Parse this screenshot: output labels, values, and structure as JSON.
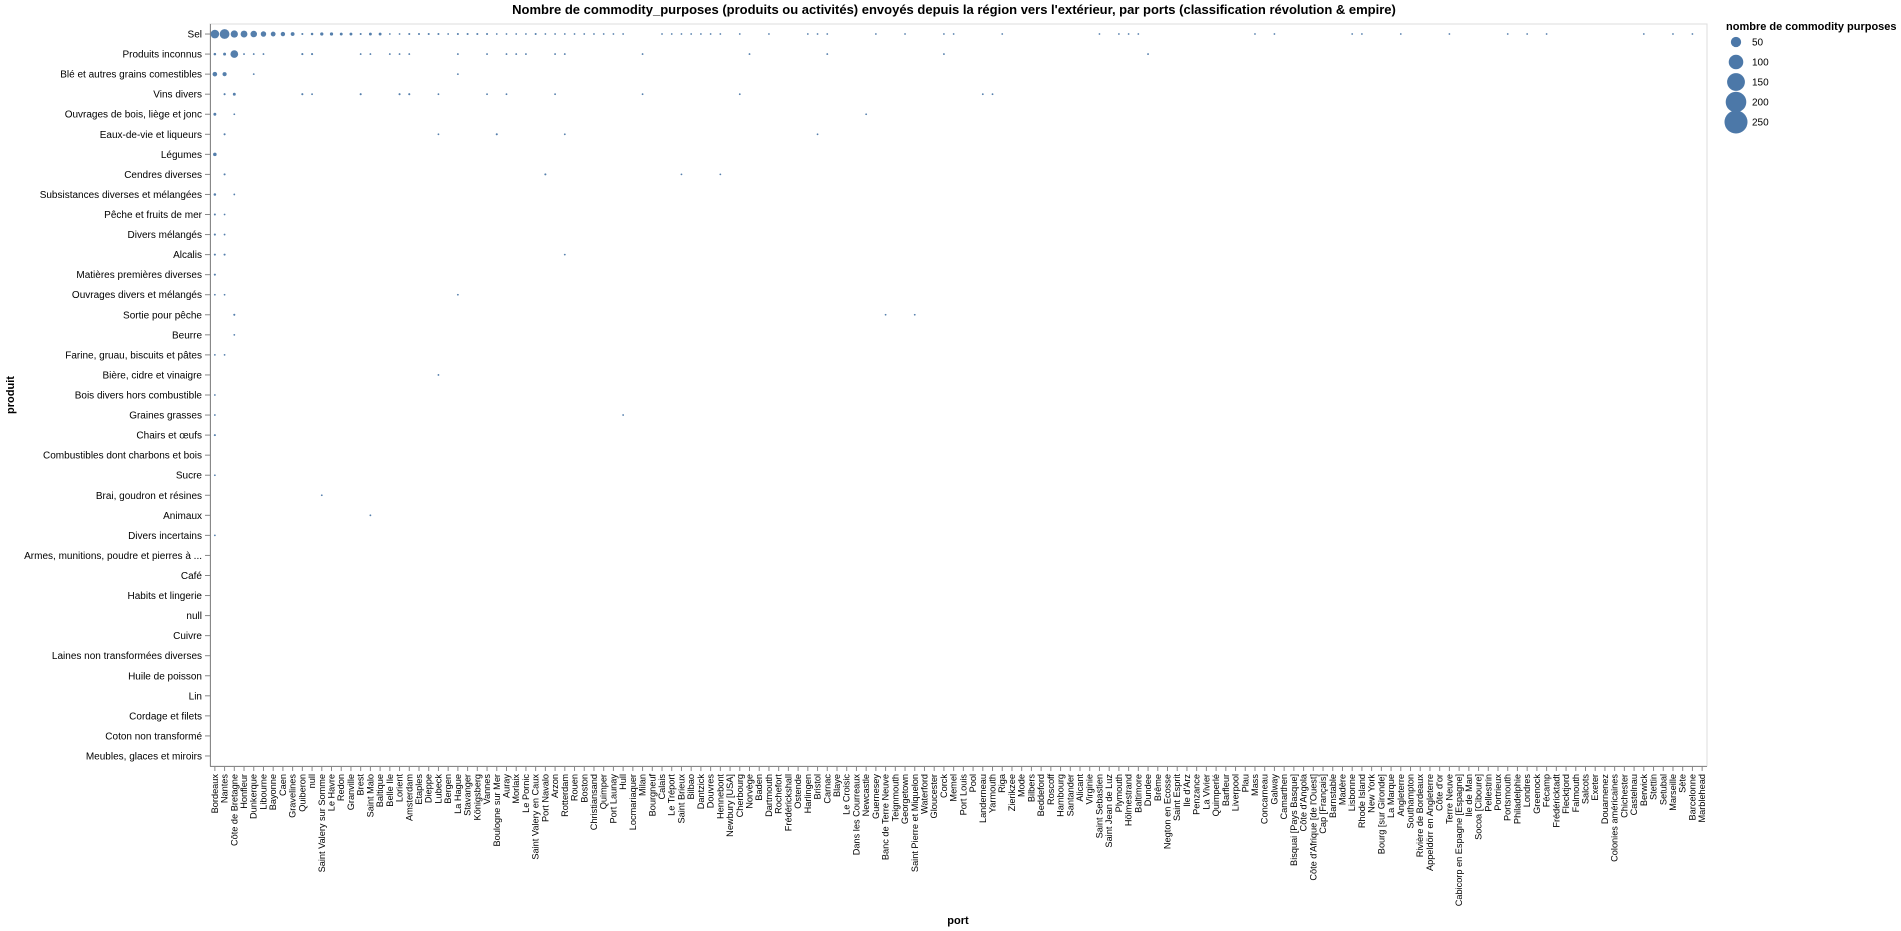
{
  "chart_data": {
    "type": "scatter",
    "title": "Nombre de commodity_purposes (produits ou activités) envoyés depuis la région vers l'extérieur, par ports (classification révolution & empire)",
    "xlabel": "port",
    "ylabel": "produit",
    "size_legend": {
      "title": "nombre de commodity purposes",
      "values": [
        50,
        100,
        150,
        200,
        250
      ]
    },
    "color": "#4c78a8",
    "y_categories": [
      "Sel",
      "Produits inconnus",
      "Blé et autres grains comestibles",
      "Vins divers",
      "Ouvrages de bois, liège et jonc",
      "Eaux-de-vie et liqueurs",
      "Légumes",
      "Cendres diverses",
      "Subsistances diverses et mélangées",
      "Pêche et fruits de mer",
      "Divers mélangés",
      "Alcalis",
      "Matières premières diverses",
      "Ouvrages divers et mélangés",
      "Sortie pour pêche",
      "Beurre",
      "Farine, gruau, biscuits et pâtes",
      "Bière, cidre et vinaigre",
      "Bois divers hors combustible",
      "Graines grasses",
      "Chairs et œufs",
      "Combustibles dont charbons et bois",
      "Sucre",
      "Brai, goudron et résines",
      "Animaux",
      "Divers incertains",
      "Armes, munitions, poudre et pierres à ...",
      "Café",
      "Habits et lingerie",
      "null",
      "Cuivre",
      "Laines non transformées diverses",
      "Huile de poisson",
      "Lin",
      "Cordage et filets",
      "Coton non transformé",
      "Meubles, glaces et miroirs"
    ],
    "x_categories": [
      "Bordeaux",
      "Nantes",
      "Côte de Bretagne",
      "Honfleur",
      "Dunkerque",
      "Libourne",
      "Bayonne",
      "Caen",
      "Gravelines",
      "Quiberon",
      "null",
      "Saint Valery sur Somme",
      "Le Havre",
      "Redon",
      "Granville",
      "Brest",
      "Saint Malo",
      "Baltique",
      "Belle Ile",
      "Lorient",
      "Amsterdam",
      "Etaples",
      "Dieppe",
      "Lubeck",
      "Bergen",
      "La Hague",
      "Stavanger",
      "Königsberg",
      "Vannes",
      "Boulogne sur Mer",
      "Auray",
      "Morlaix",
      "Le Pornic",
      "Saint Valery en Caux",
      "Port Navalo",
      "Arzon",
      "Rotterdam",
      "Rouen",
      "Boston",
      "Christiansand",
      "Quimper",
      "Port Launay",
      "Hull",
      "Locmariaquer",
      "Milan",
      "Bourgneuf",
      "Calais",
      "Le Tréport",
      "Saint Brieux",
      "Bilbao",
      "Dantzick",
      "Douvres",
      "Hennebont",
      "Newbury [USA]",
      "Cherbourg",
      "Norvège",
      "Baden",
      "Dartmouth",
      "Rochefort",
      "Frédérickshall",
      "Ostende",
      "Harlingen",
      "Bristol",
      "Carnac",
      "Blaye",
      "Le Croisic",
      "Dans les Courreaux",
      "Newcastle",
      "Guernesey",
      "Banc de Terre Neuve",
      "Teignmouth",
      "Georgetown",
      "Saint Pierre et Miquelon",
      "Waterford",
      "Gloucester",
      "Corck",
      "Memel",
      "Port Louis",
      "Pool",
      "Landerneau",
      "Yarmouth",
      "Riga",
      "Zierikzee",
      "Mode",
      "Bilbers",
      "Beddeford",
      "Roscoff",
      "Hambourg",
      "Santander",
      "Alicant",
      "Virginie",
      "Saint Sebastien",
      "Saint Jean de Luz",
      "Plymouth",
      "Hölmestrand",
      "Baltimore",
      "Dundee",
      "Brême",
      "Negton en Ecosse",
      "Saint Esprit",
      "Ile d'Arz",
      "Penzance",
      "La Vivier",
      "Quimperlé",
      "Barfleur",
      "Liverpool",
      "Plau",
      "Mass",
      "Concarneau",
      "Galway",
      "Camarthen",
      "Bisquai [Pays Basque]",
      "Côte d'Angola",
      "Côte d'Afrique [de l'Ouest]",
      "Cap [Français]",
      "Barnstable",
      "Madère",
      "Lisbonne",
      "Rhode Island",
      "New York",
      "Bourg [sur Gironde]",
      "La Marque",
      "Angleterre",
      "Southampton",
      "Rivière de Bordeaux",
      "Appeldörr en Angleterre",
      "Côte d'or",
      "Terre Neuve",
      "Cabicorp en Espagne [Espagne]",
      "Ile de Man",
      "Socoa [Ciboure]",
      "Pellestrin",
      "Portrieux",
      "Portsmouth",
      "Philadelphie",
      "Londres",
      "Greenock",
      "Fécamp",
      "Frédéricktadt",
      "Flecktjord",
      "Falmouth",
      "Salcots",
      "Exeter",
      "Douarnenez",
      "Colonies américaines",
      "Chichester",
      "Castelnau",
      "Berwick",
      "Stettin",
      "Setubal",
      "Marseille",
      "Sète",
      "Barcelonne",
      "Marblehead"
    ],
    "points": [
      [
        "Bordeaux",
        "Sel",
        35
      ],
      [
        "Nantes",
        "Sel",
        45
      ],
      [
        "Côte de Bretagne",
        "Sel",
        25
      ],
      [
        "Honfleur",
        "Sel",
        22
      ],
      [
        "Dunkerque",
        "Sel",
        20
      ],
      [
        "Libourne",
        "Sel",
        14
      ],
      [
        "Bayonne",
        "Sel",
        11
      ],
      [
        "Caen",
        "Sel",
        9
      ],
      [
        "Gravelines",
        "Sel",
        7
      ],
      [
        "Quiberon",
        "Sel",
        2
      ],
      [
        "null",
        "Sel",
        3
      ],
      [
        "Saint Valery sur Somme",
        "Sel",
        5
      ],
      [
        "Le Havre",
        "Sel",
        5
      ],
      [
        "Redon",
        "Sel",
        4
      ],
      [
        "Granville",
        "Sel",
        4
      ],
      [
        "Brest",
        "Sel",
        2
      ],
      [
        "Saint Malo",
        "Sel",
        4
      ],
      [
        "Baltique",
        "Sel",
        4
      ],
      [
        "Belle Ile",
        "Sel",
        1
      ],
      [
        "Lorient",
        "Sel",
        1
      ],
      [
        "Amsterdam",
        "Sel",
        2
      ],
      [
        "Etaples",
        "Sel",
        2
      ],
      [
        "Dieppe",
        "Sel",
        2
      ],
      [
        "Lubeck",
        "Sel",
        2
      ],
      [
        "Bergen",
        "Sel",
        1
      ],
      [
        "La Hague",
        "Sel",
        2
      ],
      [
        "Stavanger",
        "Sel",
        2
      ],
      [
        "Königsberg",
        "Sel",
        2
      ],
      [
        "Vannes",
        "Sel",
        2
      ],
      [
        "Boulogne sur Mer",
        "Sel",
        1
      ],
      [
        "Auray",
        "Sel",
        1
      ],
      [
        "Morlaix",
        "Sel",
        1
      ],
      [
        "Le Pornic",
        "Sel",
        1
      ],
      [
        "Saint Valery en Caux",
        "Sel",
        2
      ],
      [
        "Port Navalo",
        "Sel",
        1
      ],
      [
        "Arzon",
        "Sel",
        1
      ],
      [
        "Rotterdam",
        "Sel",
        1
      ],
      [
        "Rouen",
        "Sel",
        1
      ],
      [
        "Boston",
        "Sel",
        1
      ],
      [
        "Christiansand",
        "Sel",
        1
      ],
      [
        "Quimper",
        "Sel",
        1
      ],
      [
        "Port Launay",
        "Sel",
        1
      ],
      [
        "Hull",
        "Sel",
        1
      ],
      [
        "Calais",
        "Sel",
        1
      ],
      [
        "Le Tréport",
        "Sel",
        1
      ],
      [
        "Saint Brieux",
        "Sel",
        1
      ],
      [
        "Bilbao",
        "Sel",
        1
      ],
      [
        "Dantzick",
        "Sel",
        1
      ],
      [
        "Douvres",
        "Sel",
        1
      ],
      [
        "Hennebont",
        "Sel",
        1
      ],
      [
        "Cherbourg",
        "Sel",
        1
      ],
      [
        "Dartmouth",
        "Sel",
        1
      ],
      [
        "Harlingen",
        "Sel",
        1
      ],
      [
        "Bristol",
        "Sel",
        1
      ],
      [
        "Carnac",
        "Sel",
        1
      ],
      [
        "Guernesey",
        "Sel",
        1
      ],
      [
        "Georgetown",
        "Sel",
        1
      ],
      [
        "Corck",
        "Sel",
        1
      ],
      [
        "Memel",
        "Sel",
        1
      ],
      [
        "Riga",
        "Sel",
        1
      ],
      [
        "Saint Sebastien",
        "Sel",
        1
      ],
      [
        "Plymouth",
        "Sel",
        1
      ],
      [
        "Hölmestrand",
        "Sel",
        1
      ],
      [
        "Baltimore",
        "Sel",
        1
      ],
      [
        "Mass",
        "Sel",
        1
      ],
      [
        "Galway",
        "Sel",
        1
      ],
      [
        "Lisbonne",
        "Sel",
        1
      ],
      [
        "Rhode Island",
        "Sel",
        1
      ],
      [
        "Angleterre",
        "Sel",
        1
      ],
      [
        "Terre Neuve",
        "Sel",
        1
      ],
      [
        "Portsmouth",
        "Sel",
        1
      ],
      [
        "Londres",
        "Sel",
        1
      ],
      [
        "Fécamp",
        "Sel",
        1
      ],
      [
        "Berwick",
        "Sel",
        1
      ],
      [
        "Marseille",
        "Sel",
        1
      ],
      [
        "Barcelonne",
        "Sel",
        1
      ],
      [
        "Bordeaux",
        "Produits inconnus",
        3
      ],
      [
        "Nantes",
        "Produits inconnus",
        4
      ],
      [
        "Côte de Bretagne",
        "Produits inconnus",
        28
      ],
      [
        "Honfleur",
        "Produits inconnus",
        1
      ],
      [
        "Dunkerque",
        "Produits inconnus",
        1
      ],
      [
        "Libourne",
        "Produits inconnus",
        1
      ],
      [
        "Quiberon",
        "Produits inconnus",
        2
      ],
      [
        "null",
        "Produits inconnus",
        2
      ],
      [
        "Brest",
        "Produits inconnus",
        1
      ],
      [
        "Saint Malo",
        "Produits inconnus",
        1
      ],
      [
        "Belle Ile",
        "Produits inconnus",
        1
      ],
      [
        "Lorient",
        "Produits inconnus",
        1
      ],
      [
        "Amsterdam",
        "Produits inconnus",
        1
      ],
      [
        "La Hague",
        "Produits inconnus",
        1
      ],
      [
        "Vannes",
        "Produits inconnus",
        1
      ],
      [
        "Auray",
        "Produits inconnus",
        1
      ],
      [
        "Morlaix",
        "Produits inconnus",
        1
      ],
      [
        "Le Pornic",
        "Produits inconnus",
        1
      ],
      [
        "Arzon",
        "Produits inconnus",
        1
      ],
      [
        "Rotterdam",
        "Produits inconnus",
        1
      ],
      [
        "Milan",
        "Produits inconnus",
        1
      ],
      [
        "Norvège",
        "Produits inconnus",
        1
      ],
      [
        "Carnac",
        "Produits inconnus",
        1
      ],
      [
        "Corck",
        "Produits inconnus",
        1
      ],
      [
        "Dundee",
        "Produits inconnus",
        1
      ],
      [
        "Bordeaux",
        "Blé et autres grains comestibles",
        10
      ],
      [
        "Nantes",
        "Blé et autres grains comestibles",
        8
      ],
      [
        "Dunkerque",
        "Blé et autres grains comestibles",
        1
      ],
      [
        "La Hague",
        "Blé et autres grains comestibles",
        1
      ],
      [
        "Nantes",
        "Vins divers",
        2
      ],
      [
        "Côte de Bretagne",
        "Vins divers",
        4
      ],
      [
        "Quiberon",
        "Vins divers",
        2
      ],
      [
        "null",
        "Vins divers",
        1
      ],
      [
        "Brest",
        "Vins divers",
        2
      ],
      [
        "Lorient",
        "Vins divers",
        2
      ],
      [
        "Amsterdam",
        "Vins divers",
        2
      ],
      [
        "Lubeck",
        "Vins divers",
        1
      ],
      [
        "Vannes",
        "Vins divers",
        1
      ],
      [
        "Auray",
        "Vins divers",
        1
      ],
      [
        "Arzon",
        "Vins divers",
        1
      ],
      [
        "Milan",
        "Vins divers",
        1
      ],
      [
        "Cherbourg",
        "Vins divers",
        1
      ],
      [
        "Landerneau",
        "Vins divers",
        1
      ],
      [
        "Yarmouth",
        "Vins divers",
        1
      ],
      [
        "Bordeaux",
        "Ouvrages de bois, liège et jonc",
        4
      ],
      [
        "Côte de Bretagne",
        "Ouvrages de bois, liège et jonc",
        1
      ],
      [
        "Newcastle",
        "Ouvrages de bois, liège et jonc",
        1
      ],
      [
        "Nantes",
        "Eaux-de-vie et liqueurs",
        2
      ],
      [
        "Boulogne sur Mer",
        "Eaux-de-vie et liqueurs",
        2
      ],
      [
        "Lubeck",
        "Eaux-de-vie et liqueurs",
        1
      ],
      [
        "Rotterdam",
        "Eaux-de-vie et liqueurs",
        1
      ],
      [
        "Bristol",
        "Eaux-de-vie et liqueurs",
        1
      ],
      [
        "Bordeaux",
        "Légumes",
        6
      ],
      [
        "Nantes",
        "Cendres diverses",
        2
      ],
      [
        "Port Navalo",
        "Cendres diverses",
        2
      ],
      [
        "Saint Brieux",
        "Cendres diverses",
        1
      ],
      [
        "Hennebont",
        "Cendres diverses",
        1
      ],
      [
        "Bordeaux",
        "Subsistances diverses et mélangées",
        3
      ],
      [
        "Côte de Bretagne",
        "Subsistances diverses et mélangées",
        1
      ],
      [
        "Bordeaux",
        "Pêche et fruits de mer",
        2
      ],
      [
        "Nantes",
        "Pêche et fruits de mer",
        1
      ],
      [
        "Bordeaux",
        "Divers mélangés",
        2
      ],
      [
        "Nantes",
        "Divers mélangés",
        1
      ],
      [
        "Bordeaux",
        "Alcalis",
        2
      ],
      [
        "Nantes",
        "Alcalis",
        2
      ],
      [
        "Rotterdam",
        "Alcalis",
        1
      ],
      [
        "Bordeaux",
        "Matières premières diverses",
        2
      ],
      [
        "Bordeaux",
        "Ouvrages divers et mélangés",
        1
      ],
      [
        "Nantes",
        "Ouvrages divers et mélangés",
        1
      ],
      [
        "La Hague",
        "Ouvrages divers et mélangés",
        1
      ],
      [
        "Côte de Bretagne",
        "Sortie pour pêche",
        2
      ],
      [
        "Banc de Terre Neuve",
        "Sortie pour pêche",
        1
      ],
      [
        "Saint Pierre et Miquelon",
        "Sortie pour pêche",
        1
      ],
      [
        "Côte de Bretagne",
        "Beurre",
        1
      ],
      [
        "Bordeaux",
        "Farine, gruau, biscuits et pâtes",
        1
      ],
      [
        "Nantes",
        "Farine, gruau, biscuits et pâtes",
        1
      ],
      [
        "Lubeck",
        "Bière, cidre et vinaigre",
        1
      ],
      [
        "Bordeaux",
        "Bois divers hors combustible",
        1
      ],
      [
        "Bordeaux",
        "Graines grasses",
        1
      ],
      [
        "Hull",
        "Graines grasses",
        1
      ],
      [
        "Bordeaux",
        "Chairs et œufs",
        2
      ],
      [
        "Bordeaux",
        "Sucre",
        1
      ],
      [
        "Saint Valery sur Somme",
        "Brai, goudron et résines",
        1
      ],
      [
        "Saint Malo",
        "Animaux",
        1
      ],
      [
        "Bordeaux",
        "Divers incertains",
        1
      ]
    ]
  }
}
